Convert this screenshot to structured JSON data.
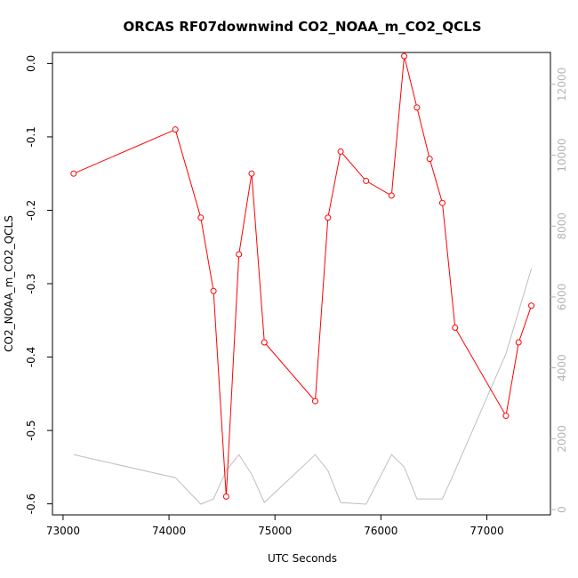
{
  "chart_data": {
    "type": "line",
    "title": "ORCAS RF07downwind CO2_NOAA_m_CO2_QCLS",
    "xlabel": "UTC Seconds",
    "ylabel": "CO2_NOAA_m_CO2_QCLS",
    "xlim": [
      72900,
      77600
    ],
    "ylim": [
      -0.615,
      0.015
    ],
    "y2lim": [
      -150,
      12900
    ],
    "x_ticks": [
      73000,
      74000,
      75000,
      76000,
      77000
    ],
    "x_tick_labels": [
      "73000",
      "74000",
      "75000",
      "76000",
      "77000"
    ],
    "y_ticks": [
      0.0,
      -0.1,
      -0.2,
      -0.3,
      -0.4,
      -0.5,
      -0.6
    ],
    "y_tick_labels": [
      "0.0",
      "-0.1",
      "-0.2",
      "-0.3",
      "-0.4",
      "-0.5",
      "-0.6"
    ],
    "y2_ticks": [
      0,
      2000,
      4000,
      6000,
      8000,
      10000,
      12000
    ],
    "y2_tick_labels": [
      "0",
      "2000",
      "4000",
      "6000",
      "8000",
      "10000",
      "12000"
    ],
    "series": [
      {
        "color": "#ff0000",
        "axis": "left",
        "markers": true,
        "x": [
          73100,
          74060,
          74300,
          74420,
          74540,
          74660,
          74780,
          74900,
          75380,
          75500,
          75620,
          75860,
          76100,
          76220,
          76340,
          76460,
          76580,
          76700,
          77180,
          77300,
          77420
        ],
        "y": [
          -0.15,
          -0.09,
          -0.21,
          -0.31,
          -0.59,
          -0.26,
          -0.15,
          -0.38,
          -0.46,
          -0.21,
          -0.12,
          -0.16,
          -0.18,
          0.01,
          -0.06,
          -0.13,
          -0.19,
          -0.36,
          -0.48,
          -0.38,
          -0.33
        ]
      },
      {
        "color": "#bebebe",
        "axis": "right",
        "markers": false,
        "x": [
          73100,
          74060,
          74300,
          74420,
          74540,
          74660,
          74780,
          74900,
          75380,
          75500,
          75620,
          75860,
          76100,
          76220,
          76340,
          76460,
          76580,
          76700,
          77180,
          77300,
          77420
        ],
        "y": [
          1550,
          900,
          150,
          300,
          1100,
          1550,
          1000,
          200,
          1550,
          1100,
          200,
          150,
          1550,
          1200,
          300,
          300,
          300,
          1100,
          4400,
          5600,
          6800
        ]
      }
    ]
  }
}
